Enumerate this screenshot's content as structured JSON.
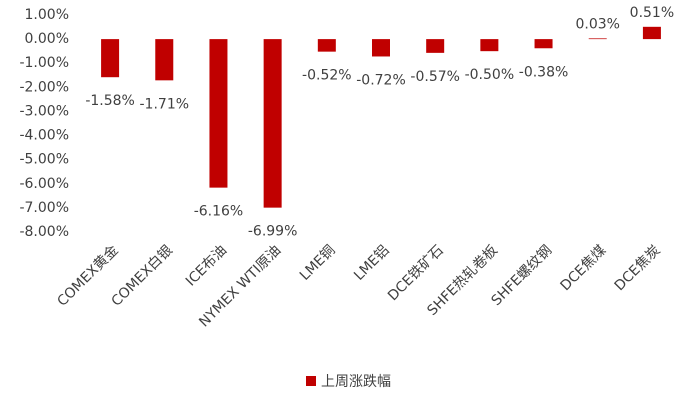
{
  "chart_data": {
    "type": "bar",
    "categories": [
      "COMEX黄金",
      "COMEX白银",
      "ICE布油",
      "NYMEX WTI原油",
      "LME铜",
      "LME铝",
      "DCE铁矿石",
      "SHFE热轧卷板",
      "SHFE螺纹钢",
      "DCE焦煤",
      "DCE焦炭"
    ],
    "series": [
      {
        "name": "上周涨跌幅",
        "color": "#c00000",
        "values": [
          -1.58,
          -1.71,
          -6.16,
          -6.99,
          -0.52,
          -0.72,
          -0.57,
          -0.5,
          -0.38,
          0.03,
          0.51
        ],
        "value_labels": [
          "-1.58%",
          "-1.71%",
          "-6.16%",
          "-6.99%",
          "-0.52%",
          "-0.72%",
          "-0.57%",
          "-0.50%",
          "-0.38%",
          "0.03%",
          "0.51%"
        ]
      }
    ],
    "ylim": [
      -8,
      1
    ],
    "yticks": [
      {
        "value": 1,
        "label": "1.00%"
      },
      {
        "value": 0,
        "label": "0.00%"
      },
      {
        "value": -1,
        "label": "-1.00%"
      },
      {
        "value": -2,
        "label": "-2.00%"
      },
      {
        "value": -3,
        "label": "-3.00%"
      },
      {
        "value": -4,
        "label": "-4.00%"
      },
      {
        "value": -5,
        "label": "-5.00%"
      },
      {
        "value": -6,
        "label": "-6.00%"
      },
      {
        "value": -7,
        "label": "-7.00%"
      },
      {
        "value": -8,
        "label": "-8.00%"
      }
    ],
    "legend": "bottom"
  }
}
